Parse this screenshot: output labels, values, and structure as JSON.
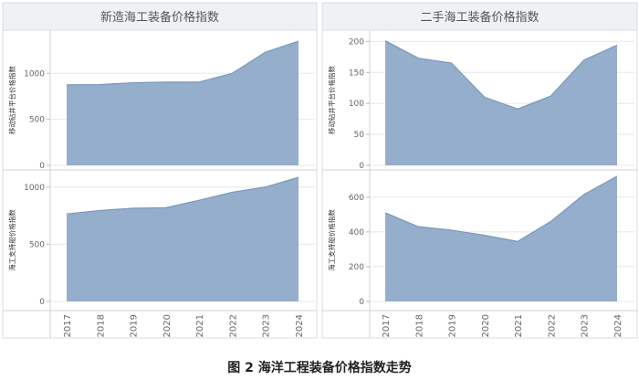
{
  "caption": "图 2  海洋工程装备价格指数走势",
  "chart_data": {
    "type": "area",
    "x": [
      "2017",
      "2018",
      "2019",
      "2020",
      "2021",
      "2022",
      "2023",
      "2024"
    ],
    "column_titles": [
      "新造海工装备价格指数",
      "二手海工装备价格指数"
    ],
    "row_labels": [
      "移动钻井平台价格指数",
      "海工支持船价格指数"
    ],
    "colors": {
      "fill": "#8faac8",
      "stroke": "#7a98bb",
      "title_bg": "#eef2f5",
      "grid": "#e8e8e8"
    },
    "panels": [
      {
        "column": 0,
        "row": 0,
        "ylim": [
          0,
          1380
        ],
        "yticks": [
          0,
          500,
          1000
        ],
        "values": [
          875,
          878,
          898,
          905,
          905,
          1000,
          1230,
          1350
        ]
      },
      {
        "column": 1,
        "row": 0,
        "ylim": [
          0,
          205
        ],
        "yticks": [
          0,
          50,
          100,
          150,
          200
        ],
        "values": [
          201,
          173,
          165,
          110,
          91,
          112,
          170,
          194
        ]
      },
      {
        "column": 0,
        "row": 1,
        "ylim": [
          0,
          1110
        ],
        "yticks": [
          0,
          500,
          1000
        ],
        "values": [
          765,
          795,
          815,
          820,
          885,
          955,
          1000,
          1085
        ]
      },
      {
        "column": 1,
        "row": 1,
        "ylim": [
          0,
          730
        ],
        "yticks": [
          0,
          200,
          400,
          600
        ],
        "values": [
          510,
          430,
          410,
          380,
          345,
          460,
          615,
          720
        ]
      }
    ]
  }
}
